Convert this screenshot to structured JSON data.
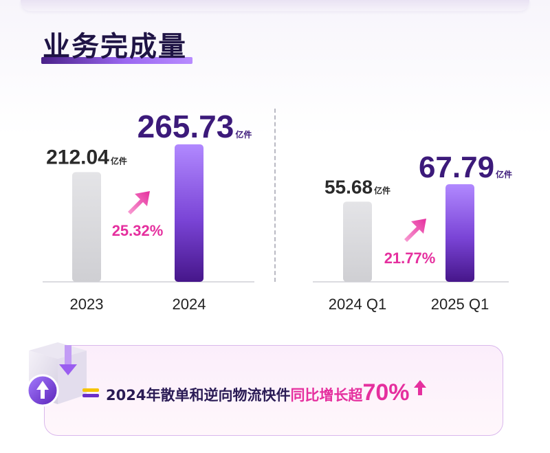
{
  "title": "业务完成量",
  "colors": {
    "purple_dark": "#4a1a8c",
    "purple_light": "#a777ff",
    "gray_bar": "#d9d9dc",
    "accent_pink": "#e52f9e"
  },
  "chart_data": [
    {
      "type": "bar",
      "categories": [
        "2023",
        "2024"
      ],
      "values": [
        212.04,
        265.73
      ],
      "unit": "亿件",
      "growth_label": "25.32%",
      "ylim": [
        0,
        300
      ]
    },
    {
      "type": "bar",
      "categories": [
        "2024 Q1",
        "2025 Q1"
      ],
      "values": [
        55.68,
        67.79
      ],
      "unit": "亿件",
      "growth_label": "21.77%",
      "ylim": [
        0,
        80
      ]
    }
  ],
  "banner": {
    "text_main": "2024年散单和逆向物流快件",
    "text_highlight": "同比增长超",
    "percent": "70%",
    "icons": [
      "box-icon",
      "up-arrow-icon",
      "dash-icon",
      "small-up-arrow-icon"
    ]
  }
}
